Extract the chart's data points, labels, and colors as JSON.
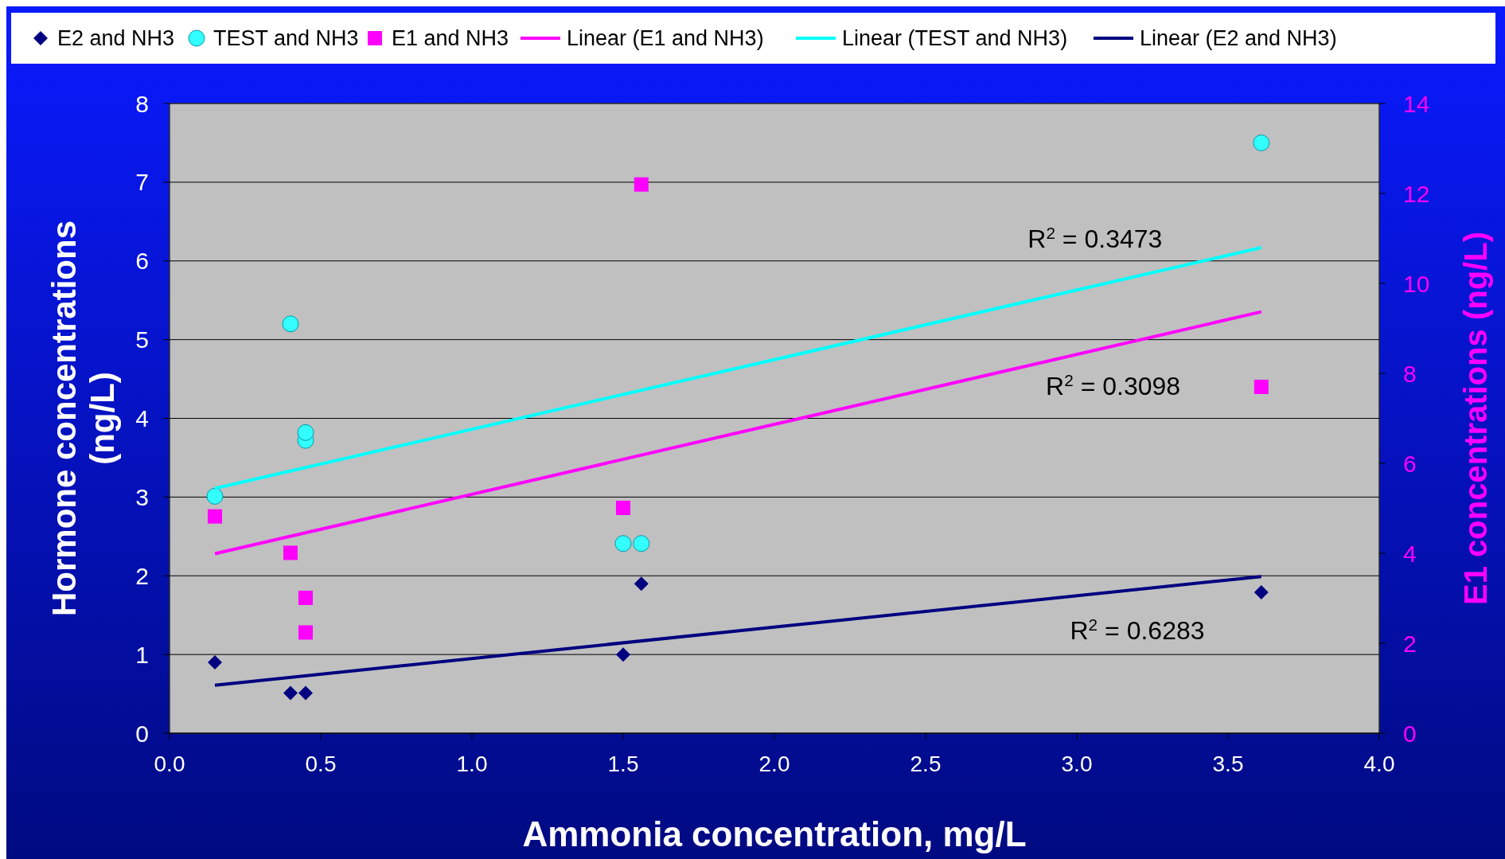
{
  "chart_data": {
    "type": "scatter",
    "xlabel": "Ammonia concentration, mg/L",
    "ylabel": "Hormone concentrations (ng/L)",
    "y2label": "E1 concentrations (ng/L)",
    "xlim": [
      0,
      4
    ],
    "xticks": [
      {
        "value": 0,
        "label": "0.0"
      },
      {
        "value": 0.5,
        "label": "0.5"
      },
      {
        "value": 1,
        "label": "1.0"
      },
      {
        "value": 1.5,
        "label": "1.5"
      },
      {
        "value": 2,
        "label": "2.0"
      },
      {
        "value": 2.5,
        "label": "2.5"
      },
      {
        "value": 3,
        "label": "3.0"
      },
      {
        "value": 3.5,
        "label": "3.5"
      },
      {
        "value": 4,
        "label": "4.0"
      }
    ],
    "ylim": [
      0,
      8
    ],
    "yticks": [
      0,
      1,
      2,
      3,
      4,
      5,
      6,
      7,
      8
    ],
    "y2lim": [
      0,
      14
    ],
    "y2ticks": [
      0,
      2,
      4,
      6,
      8,
      10,
      12,
      14
    ],
    "grid": "y",
    "legend": "top",
    "series": [
      {
        "name": "E2 and NH3",
        "type": "scatter",
        "marker": "diamond",
        "color": "#000080",
        "x": [
          0.15,
          0.4,
          0.45,
          1.5,
          1.56,
          3.61
        ],
        "values": [
          0.9,
          0.51,
          0.51,
          1.0,
          1.9,
          1.79
        ]
      },
      {
        "name": "TEST and NH3",
        "type": "scatter",
        "marker": "circle",
        "color": "#33ffff",
        "x": [
          0.15,
          0.4,
          0.45,
          0.45,
          1.5,
          1.56,
          3.61
        ],
        "values": [
          3.01,
          5.2,
          3.72,
          3.82,
          2.41,
          2.41,
          7.5
        ]
      },
      {
        "name": "E1 and NH3",
        "type": "scatter",
        "marker": "square",
        "color": "#ff00ff",
        "axis": "y2",
        "x": [
          0.15,
          0.4,
          0.45,
          0.45,
          1.5,
          1.56,
          3.61
        ],
        "values": [
          4.82,
          4.01,
          3.01,
          2.24,
          5.01,
          12.2,
          7.7
        ]
      },
      {
        "name": "Linear (E1 and NH3)",
        "type": "line",
        "marker": "none",
        "line_style": "solid",
        "color": "#ff00ff",
        "axis": "y2",
        "x": [
          0.15,
          3.61
        ],
        "values": [
          3.99,
          9.37
        ]
      },
      {
        "name": "Linear (TEST and NH3)",
        "type": "line",
        "marker": "none",
        "line_style": "solid",
        "color": "#00ffff",
        "x": [
          0.15,
          3.61
        ],
        "values": [
          3.11,
          6.17
        ]
      },
      {
        "name": "Linear (E2 and NH3)",
        "type": "line",
        "marker": "none",
        "line_style": "solid",
        "color": "#000080",
        "x": [
          0.15,
          3.61
        ],
        "values": [
          0.61,
          1.99
        ]
      }
    ],
    "annotations": [
      "R$^{2}$ = 0.3473",
      "R$^{2}$ = 0.3098",
      "R$^{2}$ = 0.6283"
    ]
  }
}
